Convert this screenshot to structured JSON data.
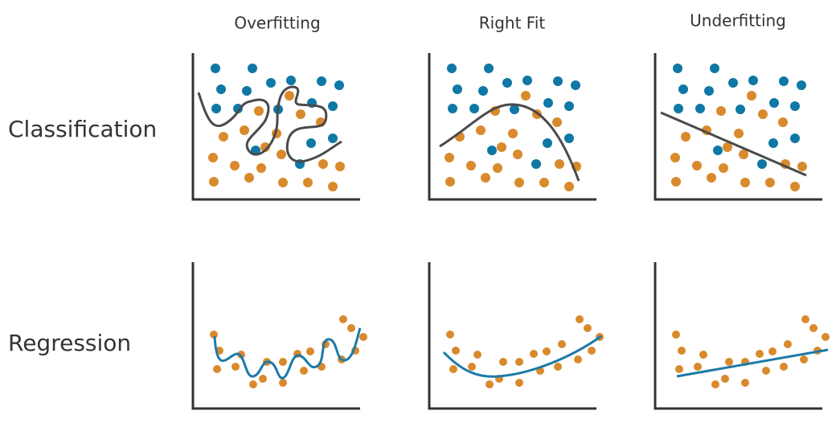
{
  "columns": {
    "overfitting": "Overfitting",
    "right_fit": "Right Fit",
    "underfitting": "Underfitting"
  },
  "rows": {
    "classification": "Classification",
    "regression": "Regression"
  }
}
